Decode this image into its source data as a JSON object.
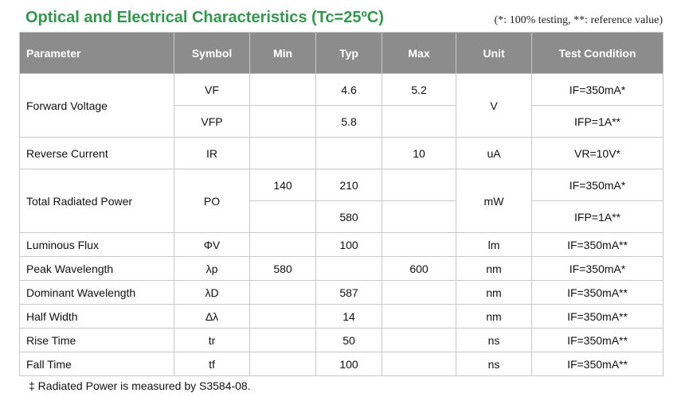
{
  "header": {
    "title": "Optical and Electrical Characteristics (Tc=25ºC)",
    "note": "(*: 100% testing, **: reference value)"
  },
  "table": {
    "columns": [
      "Parameter",
      "Symbol",
      "Min",
      "Typ",
      "Max",
      "Unit",
      "Test Condition"
    ],
    "groups": [
      {
        "parameter": "Forward Voltage",
        "unit": "V",
        "lines": [
          {
            "symbol": "VF",
            "typ": "4.6",
            "max": "5.2",
            "condition": "IF=350mA*"
          },
          {
            "symbol": "VFP",
            "typ": "5.8",
            "condition": "IFP=1A**"
          }
        ]
      },
      {
        "parameter": "Reverse Current",
        "unit": "uA",
        "lines": [
          {
            "symbol": "IR",
            "max": "10",
            "condition": "VR=10V*"
          }
        ]
      },
      {
        "parameter": "Total Radiated Power",
        "symbol": "PO",
        "unit": "mW",
        "lines": [
          {
            "min": "140",
            "typ": "210",
            "condition": "IF=350mA*"
          },
          {
            "typ": "580",
            "condition": "IFP=1A**"
          }
        ]
      },
      {
        "parameter": "Luminous Flux",
        "unit": "lm",
        "lines": [
          {
            "symbol": "ΦV",
            "typ": "100",
            "condition": "IF=350mA**"
          }
        ]
      },
      {
        "parameter": "Peak Wavelength",
        "unit": "nm",
        "lines": [
          {
            "symbol": "λp",
            "min": "580",
            "max": "600",
            "condition": "IF=350mA*"
          }
        ]
      },
      {
        "parameter": "Dominant Wavelength",
        "unit": "nm",
        "lines": [
          {
            "symbol": "λD",
            "typ": "587",
            "condition": "IF=350mA**"
          }
        ]
      },
      {
        "parameter": "Half Width",
        "unit": "nm",
        "lines": [
          {
            "symbol": "Δλ",
            "typ": "14",
            "condition": "IF=350mA**"
          }
        ]
      },
      {
        "parameter": "Rise Time",
        "unit": "ns",
        "lines": [
          {
            "symbol": "tr",
            "typ": "50",
            "condition": "IF=350mA**"
          }
        ]
      },
      {
        "parameter": "Fall Time",
        "unit": "ns",
        "lines": [
          {
            "symbol": "tf",
            "typ": "100",
            "condition": "IF=350mA**"
          }
        ]
      }
    ]
  },
  "footnote": "‡ Radiated Power is measured by S3584-08."
}
